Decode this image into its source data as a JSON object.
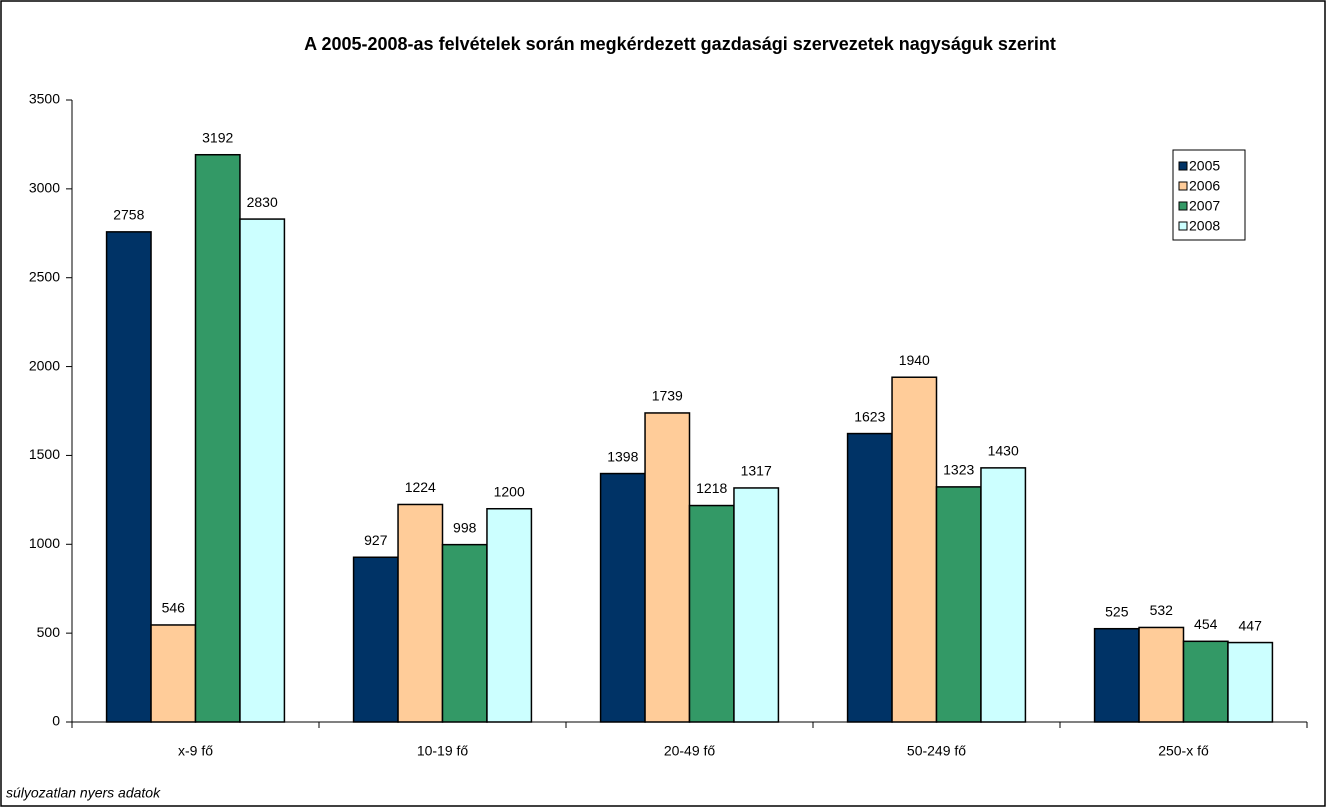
{
  "chart_data": {
    "type": "bar",
    "title": "A 2005-2008-as felvételek során megkérdezett gazdasági szervezetek nagyságuk szerint",
    "note": "súlyozatlan nyers adatok",
    "categories": [
      "x-9 fő",
      "10-19 fő",
      "20-49 fő",
      "50-249 fő",
      "250-x fő"
    ],
    "series": [
      {
        "name": "2005",
        "color": "#003366",
        "values": [
          2758,
          927,
          1398,
          1623,
          525
        ]
      },
      {
        "name": "2006",
        "color": "#ffcc99",
        "values": [
          546,
          1224,
          1739,
          1940,
          532
        ]
      },
      {
        "name": "2007",
        "color": "#339966",
        "values": [
          3192,
          998,
          1218,
          1323,
          454
        ]
      },
      {
        "name": "2008",
        "color": "#ccffff",
        "values": [
          2830,
          1200,
          1317,
          1430,
          447
        ]
      }
    ],
    "ylim": [
      0,
      3500
    ],
    "yticks": [
      0,
      500,
      1000,
      1500,
      2000,
      2500,
      3000,
      3500
    ],
    "grid": false,
    "legend": "upper right"
  }
}
